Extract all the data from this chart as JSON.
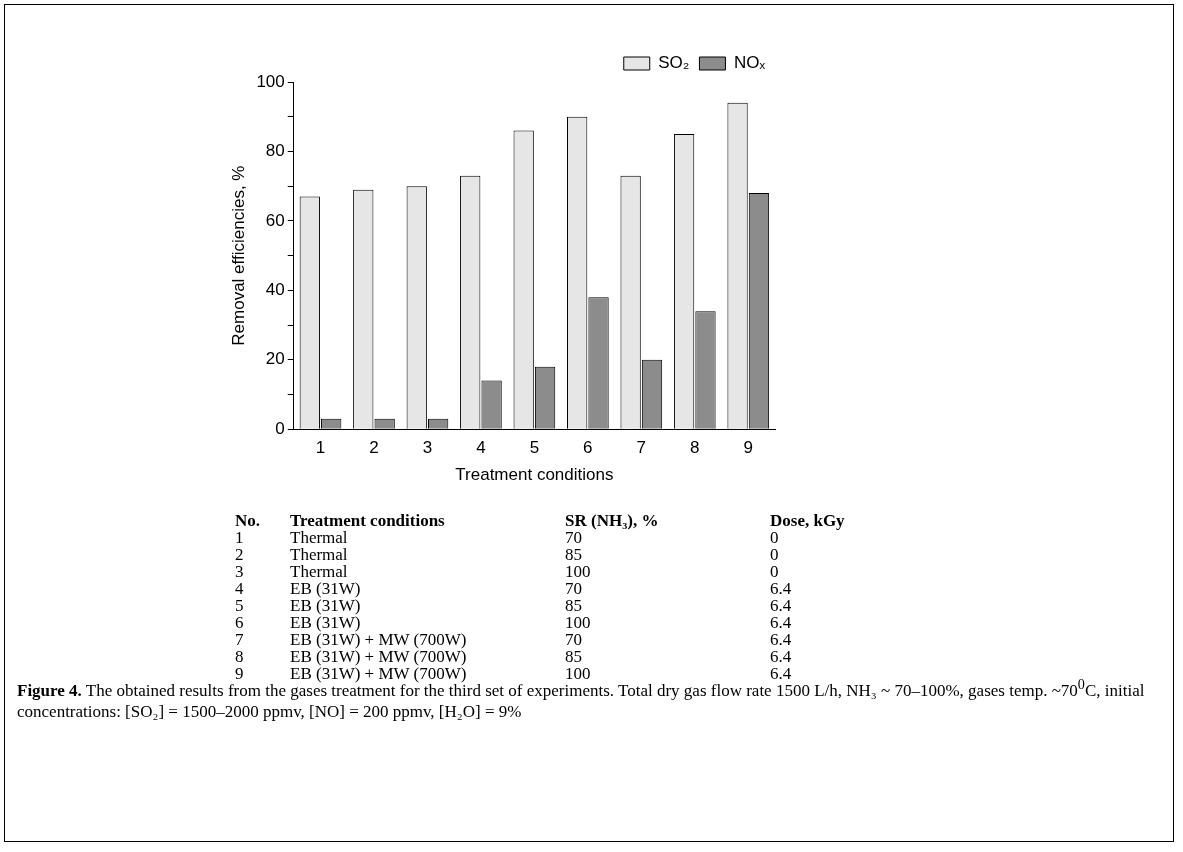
{
  "chart_data": {
    "type": "bar",
    "xlabel": "Treatment conditions",
    "ylabel": "Removal efficiencies, %",
    "categories": [
      "1",
      "2",
      "3",
      "4",
      "5",
      "6",
      "7",
      "8",
      "9"
    ],
    "series": [
      {
        "name": "SO₂",
        "color": "#e6e6e6",
        "values": [
          67,
          69,
          70,
          73,
          86,
          90,
          73,
          85,
          94
        ]
      },
      {
        "name": "NOₓ",
        "color": "#8c8c8c",
        "values": [
          3,
          3,
          3,
          14,
          18,
          38,
          20,
          34,
          68
        ]
      }
    ],
    "ylim": [
      0,
      100
    ],
    "yticks": [
      0,
      {
        "value": 10,
        "label": null
      },
      20,
      {
        "value": 30,
        "label": null
      },
      40,
      {
        "value": 50,
        "label": null
      },
      60,
      {
        "value": 70,
        "label": null
      },
      80,
      {
        "value": 90,
        "label": null
      },
      100
    ],
    "grid": false,
    "legend": "top right",
    "annotations": [
      "No.",
      "Treatment conditions",
      "SR (NH₃), %",
      "Dose, kGy",
      "1",
      "Thermal",
      "70",
      "0",
      "2",
      "Thermal",
      "85",
      "0",
      "3",
      "Thermal",
      "100",
      "0",
      "4",
      "EB (31W)",
      "70",
      "6.4",
      "5",
      "EB (31W)",
      "85",
      "6.4",
      "6",
      "EB (31W)",
      "100",
      "6.4",
      "7",
      "EB (31W) + MW (700W)",
      "70",
      "6.4",
      "8",
      "EB (31W) + MW (700W)",
      "85",
      "6.4",
      "9",
      "EB (31W) + MW (700W)",
      "100",
      "6.4",
      "Figure 4.",
      "The obtained results from the gases treatment for the third set of experiments. Total dry gas flow rate 1500 L/h, NH₃ ~ 70–100%, gases temp. ~70$^{0}$C, initial concentrations: [SO₂] = 1500–2000 ppmv, [NO] = 200 ppmv, [H₂O] = 9%"
    ]
  }
}
